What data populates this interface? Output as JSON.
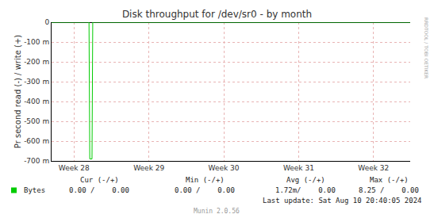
{
  "chart_data": {
    "type": "line",
    "title": "Disk throughput for /dev/sr0 - by month",
    "y_label": "Pr second read (-) / write (+)",
    "x": [
      27.7,
      28.2,
      28.21,
      28.24,
      28.25,
      32.49
    ],
    "series": [
      {
        "name": "Bytes",
        "color": "#00cc00",
        "values": [
          0,
          0,
          -0.69,
          -0.69,
          0,
          0
        ]
      }
    ],
    "xlim": [
      27.7,
      32.49
    ],
    "xticks": [
      {
        "value": 28,
        "label": "Week 28"
      },
      {
        "value": 29,
        "label": "Week 29"
      },
      {
        "value": 30,
        "label": "Week 30"
      },
      {
        "value": 31,
        "label": "Week 31"
      },
      {
        "value": 32,
        "label": "Week 32"
      }
    ],
    "ylim": [
      -0.7,
      0
    ],
    "yticks": [
      0,
      {
        "value": -0.1,
        "label": "-100 m"
      },
      {
        "value": -0.2,
        "label": "-200 m"
      },
      {
        "value": -0.3,
        "label": "-300 m"
      },
      {
        "value": -0.4,
        "label": "-400 m"
      },
      {
        "value": -0.5,
        "label": "-500 m"
      },
      {
        "value": -0.6,
        "label": "-600 m"
      },
      {
        "value": -0.7,
        "label": "-700 m"
      }
    ],
    "grid": true,
    "legend_table": {
      "header": [
        "Cur (-/+)",
        "Min (-/+)",
        "Avg (-/+)",
        "Max (-/+)"
      ],
      "rows": [
        {
          "name": "Bytes",
          "cells": [
            "0.00 /    0.00",
            "0.00 /    0.00",
            "1.72m/    0.00",
            "8.25 /    0.00"
          ]
        }
      ]
    },
    "last_update": "Last update: Sat Aug 10 20:40:05 2024",
    "footer": "Munin 2.0.56",
    "side_text": "RRDTOOL / TOBI OETIKER"
  }
}
